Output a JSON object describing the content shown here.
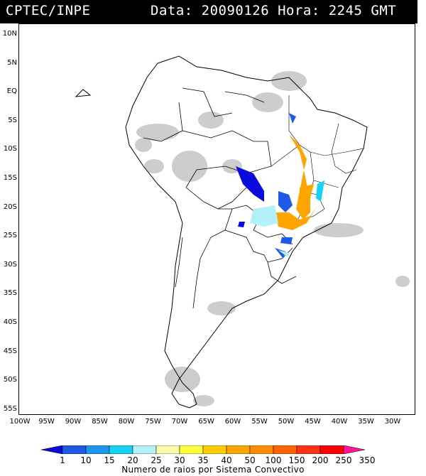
{
  "header": {
    "source": "CPTEC/INPE",
    "datetime": "Data: 20090126 Hora: 2245 GMT"
  },
  "map": {
    "lat_labels": [
      "10N",
      "5N",
      "EQ",
      "5S",
      "10S",
      "15S",
      "20S",
      "25S",
      "30S",
      "35S",
      "40S",
      "45S",
      "50S",
      "55S"
    ],
    "lon_labels": [
      "100W",
      "95W",
      "90W",
      "85W",
      "80W",
      "75W",
      "70W",
      "65W",
      "60W",
      "55W",
      "50W",
      "45W",
      "40W",
      "35W",
      "30W"
    ],
    "land_color": "#ffffff",
    "border_color": "#000000",
    "cloud_color": "#c8c8c8"
  },
  "legend": {
    "title": "Numero de raios por Sistema Convectivo",
    "labels": [
      "1",
      "10",
      "15",
      "20",
      "25",
      "30",
      "35",
      "40",
      "50",
      "100",
      "150",
      "200",
      "250",
      "350"
    ],
    "colors": [
      "#0a0adc",
      "#1e5ae6",
      "#1e96f0",
      "#14d2f5",
      "#b4f0fa",
      "#fafaaa",
      "#ffff3c",
      "#ffcc00",
      "#ffa500",
      "#ff8c00",
      "#ff6400",
      "#ff3214",
      "#ff0000",
      "#ff1493"
    ]
  }
}
